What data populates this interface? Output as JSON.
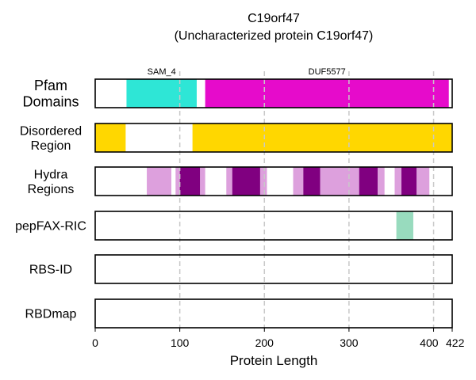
{
  "chart_data": {
    "type": "bar",
    "title": "C19orf47",
    "subtitle": "(Uncharacterized protein C19orf47)",
    "xlabel": "Protein Length",
    "xlim": [
      0,
      422
    ],
    "xticks": [
      0,
      100,
      200,
      300,
      400,
      422
    ],
    "xtick_labels": [
      "0",
      "100",
      "200",
      "300",
      "400",
      "422"
    ],
    "gridlines": [
      100,
      200,
      300,
      400
    ],
    "grid": "vertical dashed",
    "tracks": [
      {
        "label": [
          "Pfam",
          "Domains"
        ],
        "segments": [
          {
            "start": 37,
            "end": 120,
            "color": "#2ee6d6",
            "label": "SAM_4"
          },
          {
            "start": 130,
            "end": 418,
            "color": "#e60bcb",
            "label": "DUF5577"
          }
        ]
      },
      {
        "label": [
          "Disordered",
          "Region"
        ],
        "segments": [
          {
            "start": 0,
            "end": 36,
            "color": "#ffd700"
          },
          {
            "start": 115,
            "end": 422,
            "color": "#ffd700"
          }
        ]
      },
      {
        "label": [
          "Hydra",
          "Regions"
        ],
        "segments": [
          {
            "start": 61,
            "end": 90,
            "color": "#dda0dd"
          },
          {
            "start": 95,
            "end": 100,
            "color": "#dda0dd"
          },
          {
            "start": 100,
            "end": 124,
            "color": "#800080"
          },
          {
            "start": 124,
            "end": 130,
            "color": "#dda0dd"
          },
          {
            "start": 155,
            "end": 162,
            "color": "#dda0dd"
          },
          {
            "start": 162,
            "end": 195,
            "color": "#800080"
          },
          {
            "start": 195,
            "end": 203,
            "color": "#dda0dd"
          },
          {
            "start": 234,
            "end": 246,
            "color": "#dda0dd"
          },
          {
            "start": 246,
            "end": 266,
            "color": "#800080"
          },
          {
            "start": 266,
            "end": 312,
            "color": "#dda0dd"
          },
          {
            "start": 312,
            "end": 334,
            "color": "#800080"
          },
          {
            "start": 334,
            "end": 342,
            "color": "#dda0dd"
          },
          {
            "start": 354,
            "end": 362,
            "color": "#dda0dd"
          },
          {
            "start": 362,
            "end": 380,
            "color": "#800080"
          },
          {
            "start": 380,
            "end": 395,
            "color": "#dda0dd"
          }
        ]
      },
      {
        "label": [
          "pepFAX-RIC"
        ],
        "segments": [
          {
            "start": 356,
            "end": 376,
            "color": "#98dbbe"
          }
        ]
      },
      {
        "label": [
          "RBS-ID"
        ],
        "segments": []
      },
      {
        "label": [
          "RBDmap"
        ],
        "segments": []
      }
    ]
  }
}
